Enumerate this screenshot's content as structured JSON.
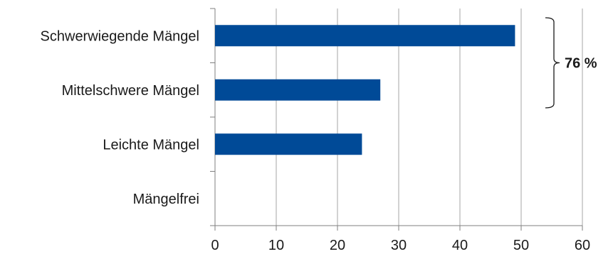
{
  "chart_data": {
    "type": "bar",
    "orientation": "horizontal",
    "categories": [
      "Schwerwiegende Mängel",
      "Mittelschwere Mängel",
      "Leichte Mängel",
      "Mängelfrei"
    ],
    "values": [
      49,
      27,
      24,
      0
    ],
    "xlim": [
      0,
      60
    ],
    "xticks": [
      0,
      10,
      20,
      30,
      40,
      50,
      60
    ],
    "title": "",
    "xlabel": "",
    "ylabel": "",
    "grid": "vertical",
    "bar_color": "#004a97",
    "grid_color": "#a6a6a6",
    "annotation": {
      "text": "76 %",
      "bracket_spans": [
        "Schwerwiegende Mängel",
        "Mittelschwere Mängel"
      ]
    }
  }
}
